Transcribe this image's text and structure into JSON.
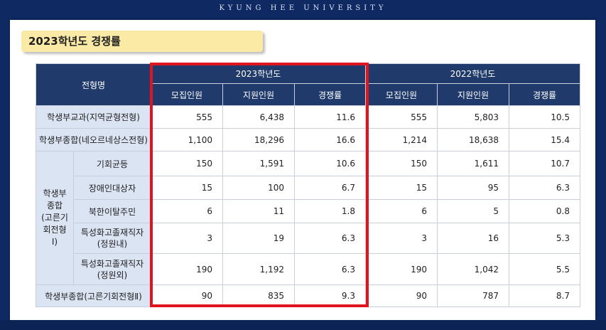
{
  "header": {
    "university": "KYUNG HEE UNIVERSITY"
  },
  "title": "2023학년도 경쟁률",
  "table": {
    "type_header": "전형명",
    "years": [
      "2023학년도",
      "2022학년도"
    ],
    "columns": [
      "모집인원",
      "지원인원",
      "경쟁률",
      "모집인원",
      "지원인원",
      "경쟁률"
    ],
    "group_label_lines": [
      "학생부",
      "종합",
      "(고른기",
      "회전형",
      "Ⅰ)"
    ],
    "rows": [
      {
        "label": "학생부교과(지역균형전형)",
        "values": [
          "555",
          "6,438",
          "11.6",
          "555",
          "5,803",
          "10.5"
        ]
      },
      {
        "label": "학생부종합(네오르네상스전형)",
        "values": [
          "1,100",
          "18,296",
          "16.6",
          "1,214",
          "18,638",
          "15.4"
        ]
      },
      {
        "label": "기회균등",
        "values": [
          "150",
          "1,591",
          "10.6",
          "150",
          "1,611",
          "10.7"
        ]
      },
      {
        "label": "장애인대상자",
        "values": [
          "15",
          "100",
          "6.7",
          "15",
          "95",
          "6.3"
        ]
      },
      {
        "label": "북한이탈주민",
        "values": [
          "6",
          "11",
          "1.8",
          "6",
          "5",
          "0.8"
        ]
      },
      {
        "label_lines": [
          "특성화고졸재직자",
          "(정원내)"
        ],
        "values": [
          "3",
          "19",
          "6.3",
          "3",
          "16",
          "5.3"
        ]
      },
      {
        "label_lines": [
          "특성화고졸재직자",
          "(정원외)"
        ],
        "values": [
          "190",
          "1,192",
          "6.3",
          "190",
          "1,042",
          "5.5"
        ]
      },
      {
        "label": "학생부종합(고른기회전형Ⅱ)",
        "values": [
          "90",
          "835",
          "9.3",
          "90",
          "787",
          "8.7"
        ]
      }
    ]
  },
  "highlight": {
    "color": "#e0141e"
  }
}
